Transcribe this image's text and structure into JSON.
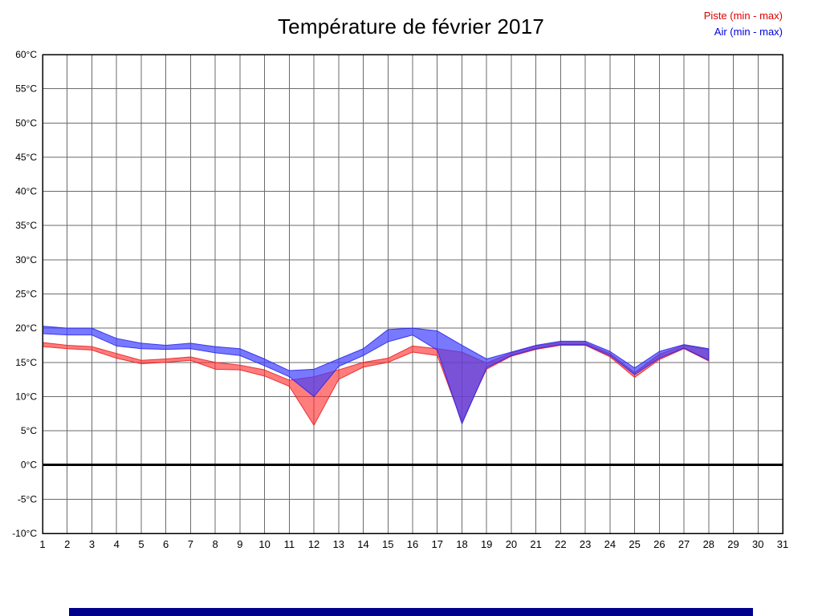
{
  "chart_data": {
    "type": "area",
    "title": "Température de février 2017",
    "xlabel": "",
    "ylabel": "",
    "xlim": [
      1,
      31
    ],
    "ylim": [
      -10,
      60
    ],
    "ytick_step": 5,
    "ytick_suffix": "°C",
    "grid": true,
    "zero_line_value": 0,
    "legend_position": "top-right",
    "x": [
      1,
      2,
      3,
      4,
      5,
      6,
      7,
      8,
      9,
      10,
      11,
      12,
      13,
      14,
      15,
      16,
      17,
      18,
      19,
      20,
      21,
      22,
      23,
      24,
      25,
      26,
      27,
      28
    ],
    "series": [
      {
        "id": "piste",
        "name": "Piste (min - max)",
        "legend_color": "#dd0000",
        "fill": "rgba(255,45,45,0.62)",
        "stroke": "rgba(235,25,25,0.85)",
        "min": [
          17.3,
          17.0,
          16.8,
          15.6,
          14.8,
          15.0,
          15.3,
          14.0,
          13.9,
          13.0,
          11.5,
          5.8,
          12.5,
          14.3,
          15.0,
          16.5,
          16.0,
          6.3,
          14.0,
          15.9,
          16.9,
          17.5,
          17.5,
          15.8,
          12.8,
          15.4,
          17.0,
          15.2
        ],
        "max": [
          17.9,
          17.5,
          17.3,
          16.3,
          15.3,
          15.5,
          15.8,
          15.0,
          14.6,
          13.9,
          12.4,
          12.9,
          13.9,
          15.0,
          15.6,
          17.4,
          17.0,
          16.5,
          14.9,
          16.4,
          17.4,
          17.9,
          17.9,
          16.3,
          13.5,
          16.2,
          17.5,
          16.9
        ]
      },
      {
        "id": "air",
        "name": "Air (min - max)",
        "legend_color": "#0000dd",
        "fill": "rgba(64,64,255,0.70)",
        "stroke": "rgba(35,35,235,0.85)",
        "min": [
          19.2,
          19.0,
          19.0,
          17.4,
          17.0,
          16.9,
          17.0,
          16.4,
          16.0,
          14.5,
          12.9,
          10.0,
          14.4,
          16.0,
          18.0,
          19.0,
          16.8,
          6.0,
          14.2,
          16.0,
          17.0,
          17.6,
          17.6,
          16.0,
          13.2,
          15.6,
          17.1,
          15.3
        ],
        "max": [
          20.3,
          20.0,
          20.0,
          18.5,
          17.8,
          17.5,
          17.8,
          17.3,
          17.0,
          15.5,
          13.8,
          14.0,
          15.5,
          17.0,
          19.8,
          20.0,
          19.6,
          17.5,
          15.5,
          16.5,
          17.5,
          18.1,
          18.1,
          16.6,
          14.2,
          16.6,
          17.6,
          17.0
        ]
      }
    ]
  },
  "scrollbar_color": "#00008B"
}
